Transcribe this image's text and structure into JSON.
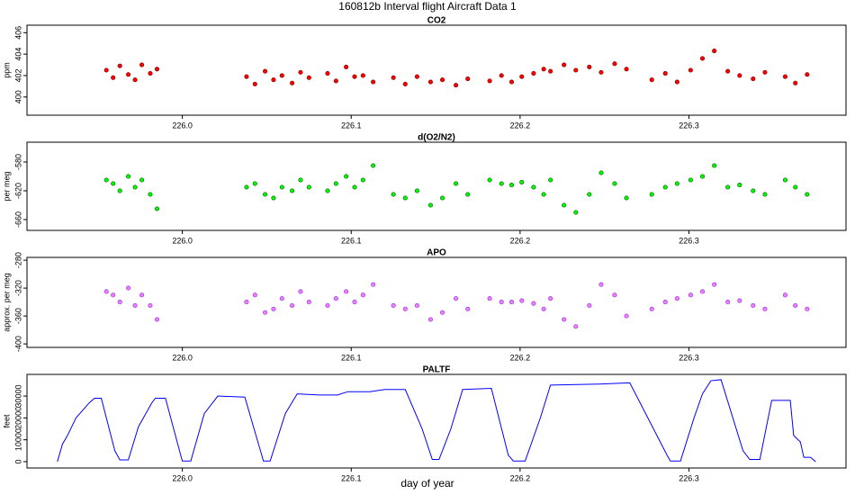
{
  "title": "160812b   Interval flight Aircraft Data 1",
  "x_label": "day of year",
  "chart_data": [
    {
      "type": "scatter",
      "title": "CO2",
      "y_label": "ppm",
      "color": "#ff0000",
      "edge_color": "#8b0000",
      "xlim": [
        225.908,
        226.393
      ],
      "xticks": [
        {
          "value": 226,
          "label": "226.0"
        },
        226.1,
        226.2,
        226.3
      ],
      "ylim": [
        398.3,
        406.7
      ],
      "yticks": [
        400,
        402,
        404,
        406
      ],
      "x": [
        225.955,
        225.959,
        225.963,
        225.968,
        225.972,
        225.976,
        225.981,
        225.985,
        226.038,
        226.043,
        226.049,
        226.054,
        226.059,
        226.065,
        226.07,
        226.075,
        226.086,
        226.091,
        226.097,
        226.102,
        226.107,
        226.113,
        226.125,
        226.132,
        226.139,
        226.147,
        226.154,
        226.162,
        226.169,
        226.182,
        226.189,
        226.195,
        226.201,
        226.208,
        226.214,
        226.218,
        226.226,
        226.233,
        226.241,
        226.248,
        226.256,
        226.263,
        226.278,
        226.286,
        226.293,
        226.301,
        226.308,
        226.315,
        226.323,
        226.33,
        226.338,
        226.345,
        226.357,
        226.363,
        226.37
      ],
      "values": [
        402.5,
        401.8,
        402.9,
        402.1,
        401.6,
        403.0,
        402.2,
        402.6,
        401.9,
        401.2,
        402.4,
        401.6,
        402.0,
        401.3,
        402.3,
        401.8,
        402.2,
        401.5,
        402.8,
        401.9,
        402.0,
        401.4,
        401.8,
        401.2,
        401.9,
        401.4,
        401.6,
        401.1,
        401.7,
        401.5,
        402.0,
        401.4,
        401.9,
        402.2,
        402.6,
        402.4,
        403.0,
        402.5,
        402.8,
        402.3,
        403.1,
        402.6,
        401.6,
        402.2,
        401.4,
        402.5,
        403.6,
        404.3,
        402.4,
        402.0,
        401.7,
        402.3,
        401.9,
        401.3,
        402.1
      ]
    },
    {
      "type": "scatter",
      "title": "d(O2/N2)",
      "y_label": "per meg",
      "color": "#00ff00",
      "edge_color": "#006400",
      "xlim": [
        225.908,
        226.393
      ],
      "xticks": [
        {
          "value": 226,
          "label": "226.0"
        },
        226.1,
        226.2,
        226.3
      ],
      "ylim": [
        -675,
        -552.5
      ],
      "yticks": [
        -580,
        -620,
        -660
      ],
      "x": [
        225.955,
        225.959,
        225.963,
        225.968,
        225.972,
        225.976,
        225.981,
        225.985,
        226.038,
        226.043,
        226.049,
        226.054,
        226.059,
        226.065,
        226.07,
        226.075,
        226.086,
        226.091,
        226.097,
        226.102,
        226.107,
        226.113,
        226.125,
        226.132,
        226.139,
        226.147,
        226.154,
        226.162,
        226.169,
        226.182,
        226.189,
        226.195,
        226.201,
        226.208,
        226.214,
        226.218,
        226.226,
        226.233,
        226.241,
        226.248,
        226.256,
        226.263,
        226.278,
        226.286,
        226.293,
        226.301,
        226.308,
        226.315,
        226.323,
        226.33,
        226.338,
        226.345,
        226.357,
        226.363,
        226.37
      ],
      "values": [
        -605,
        -610,
        -620,
        -600,
        -615,
        -605,
        -625,
        -645,
        -615,
        -610,
        -625,
        -630,
        -615,
        -620,
        -605,
        -615,
        -620,
        -610,
        -600,
        -615,
        -605,
        -585,
        -625,
        -630,
        -620,
        -640,
        -630,
        -610,
        -625,
        -605,
        -610,
        -612,
        -608,
        -615,
        -625,
        -605,
        -640,
        -650,
        -625,
        -595,
        -610,
        -630,
        -625,
        -615,
        -610,
        -605,
        -600,
        -585,
        -615,
        -612,
        -620,
        -625,
        -605,
        -615,
        -625
      ]
    },
    {
      "type": "scatter",
      "title": "APO",
      "y_label": "approx. per meg",
      "color": "#ee82ee",
      "edge_color": "#9b30ff",
      "xlim": [
        225.908,
        226.393
      ],
      "xticks": [
        {
          "value": 226,
          "label": "226.0"
        },
        226.1,
        226.2,
        226.3
      ],
      "ylim": [
        -405,
        -276
      ],
      "yticks": [
        -280,
        -320,
        -360,
        -400
      ],
      "x": [
        225.955,
        225.959,
        225.963,
        225.968,
        225.972,
        225.976,
        225.981,
        225.985,
        226.038,
        226.043,
        226.049,
        226.054,
        226.059,
        226.065,
        226.07,
        226.075,
        226.086,
        226.091,
        226.097,
        226.102,
        226.107,
        226.113,
        226.125,
        226.132,
        226.139,
        226.147,
        226.154,
        226.162,
        226.169,
        226.182,
        226.189,
        226.195,
        226.201,
        226.208,
        226.214,
        226.218,
        226.226,
        226.233,
        226.241,
        226.248,
        226.256,
        226.263,
        226.278,
        226.286,
        226.293,
        226.301,
        226.308,
        226.315,
        226.323,
        226.33,
        226.338,
        226.345,
        226.357,
        226.363,
        226.37
      ],
      "values": [
        -325,
        -330,
        -340,
        -320,
        -345,
        -330,
        -345,
        -365,
        -340,
        -330,
        -355,
        -350,
        -335,
        -345,
        -325,
        -340,
        -345,
        -335,
        -325,
        -340,
        -330,
        -315,
        -345,
        -350,
        -345,
        -365,
        -355,
        -335,
        -350,
        -335,
        -340,
        -340,
        -338,
        -342,
        -350,
        -335,
        -365,
        -375,
        -345,
        -315,
        -330,
        -360,
        -350,
        -340,
        -335,
        -330,
        -325,
        -315,
        -340,
        -338,
        -345,
        -350,
        -330,
        -345,
        -350
      ]
    },
    {
      "type": "line",
      "title": "PALTF",
      "y_label": "feet",
      "color": "#0000ff",
      "xlim": [
        225.908,
        226.393
      ],
      "xticks": [
        {
          "value": 226,
          "label": "226.0"
        },
        226.1,
        226.2,
        226.3
      ],
      "ylim": [
        -2900,
        39900
      ],
      "yticks": [
        0,
        10000,
        20000,
        30000
      ],
      "x": [
        225.926,
        225.929,
        225.932,
        225.937,
        225.945,
        225.948,
        225.952,
        225.96,
        225.963,
        225.968,
        225.974,
        225.982,
        225.984,
        225.99,
        225.999,
        226.0,
        226.005,
        226.013,
        226.021,
        226.037,
        226.047,
        226.048,
        226.052,
        226.061,
        226.068,
        226.081,
        226.092,
        226.098,
        226.111,
        226.12,
        226.132,
        226.142,
        226.148,
        226.152,
        226.159,
        226.166,
        226.183,
        226.193,
        226.196,
        226.203,
        226.212,
        226.218,
        226.247,
        226.263,
        226.265,
        226.287,
        226.289,
        226.295,
        226.303,
        226.308,
        226.313,
        226.319,
        226.332,
        226.336,
        226.342,
        226.349,
        226.36,
        226.362,
        226.366,
        226.368,
        226.372,
        226.375
      ],
      "values": [
        0,
        8000,
        12000,
        20000,
        27000,
        29000,
        29000,
        5000,
        800,
        800,
        16000,
        27000,
        29000,
        29000,
        3000,
        300,
        300,
        22000,
        30000,
        29500,
        3000,
        300,
        300,
        22000,
        31000,
        30500,
        30500,
        32000,
        32000,
        33000,
        33000,
        15000,
        1000,
        1000,
        15000,
        33000,
        33500,
        3000,
        300,
        300,
        20000,
        35000,
        35500,
        36000,
        36000,
        3000,
        300,
        300,
        20000,
        31000,
        37000,
        37500,
        5000,
        1000,
        1000,
        28000,
        28000,
        12000,
        9000,
        2000,
        2000,
        0
      ]
    }
  ]
}
